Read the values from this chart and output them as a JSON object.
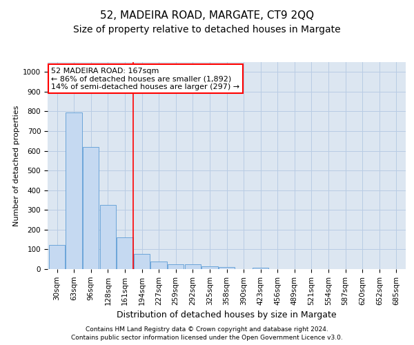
{
  "title": "52, MADEIRA ROAD, MARGATE, CT9 2QQ",
  "subtitle": "Size of property relative to detached houses in Margate",
  "xlabel": "Distribution of detached houses by size in Margate",
  "ylabel": "Number of detached properties",
  "categories": [
    "30sqm",
    "63sqm",
    "96sqm",
    "128sqm",
    "161sqm",
    "194sqm",
    "227sqm",
    "259sqm",
    "292sqm",
    "325sqm",
    "358sqm",
    "390sqm",
    "423sqm",
    "456sqm",
    "489sqm",
    "521sqm",
    "554sqm",
    "587sqm",
    "620sqm",
    "652sqm",
    "685sqm"
  ],
  "values": [
    122,
    793,
    620,
    325,
    160,
    78,
    37,
    25,
    23,
    15,
    10,
    0,
    8,
    0,
    0,
    0,
    0,
    0,
    0,
    0,
    0
  ],
  "bar_color": "#c5d9f1",
  "bar_edge_color": "#5b9bd5",
  "red_line_index": 4,
  "annotation_line1": "52 MADEIRA ROAD: 167sqm",
  "annotation_line2": "← 86% of detached houses are smaller (1,892)",
  "annotation_line3": "14% of semi-detached houses are larger (297) →",
  "annotation_box_color": "white",
  "annotation_box_edge": "red",
  "ylim": [
    0,
    1050
  ],
  "yticks": [
    0,
    100,
    200,
    300,
    400,
    500,
    600,
    700,
    800,
    900,
    1000
  ],
  "grid_color": "#b8cce4",
  "bg_color": "#dce6f1",
  "footer_line1": "Contains HM Land Registry data © Crown copyright and database right 2024.",
  "footer_line2": "Contains public sector information licensed under the Open Government Licence v3.0.",
  "title_fontsize": 11,
  "subtitle_fontsize": 10,
  "annotation_fontsize": 8,
  "ylabel_fontsize": 8,
  "xlabel_fontsize": 9,
  "tick_fontsize": 7.5,
  "footer_fontsize": 6.5
}
